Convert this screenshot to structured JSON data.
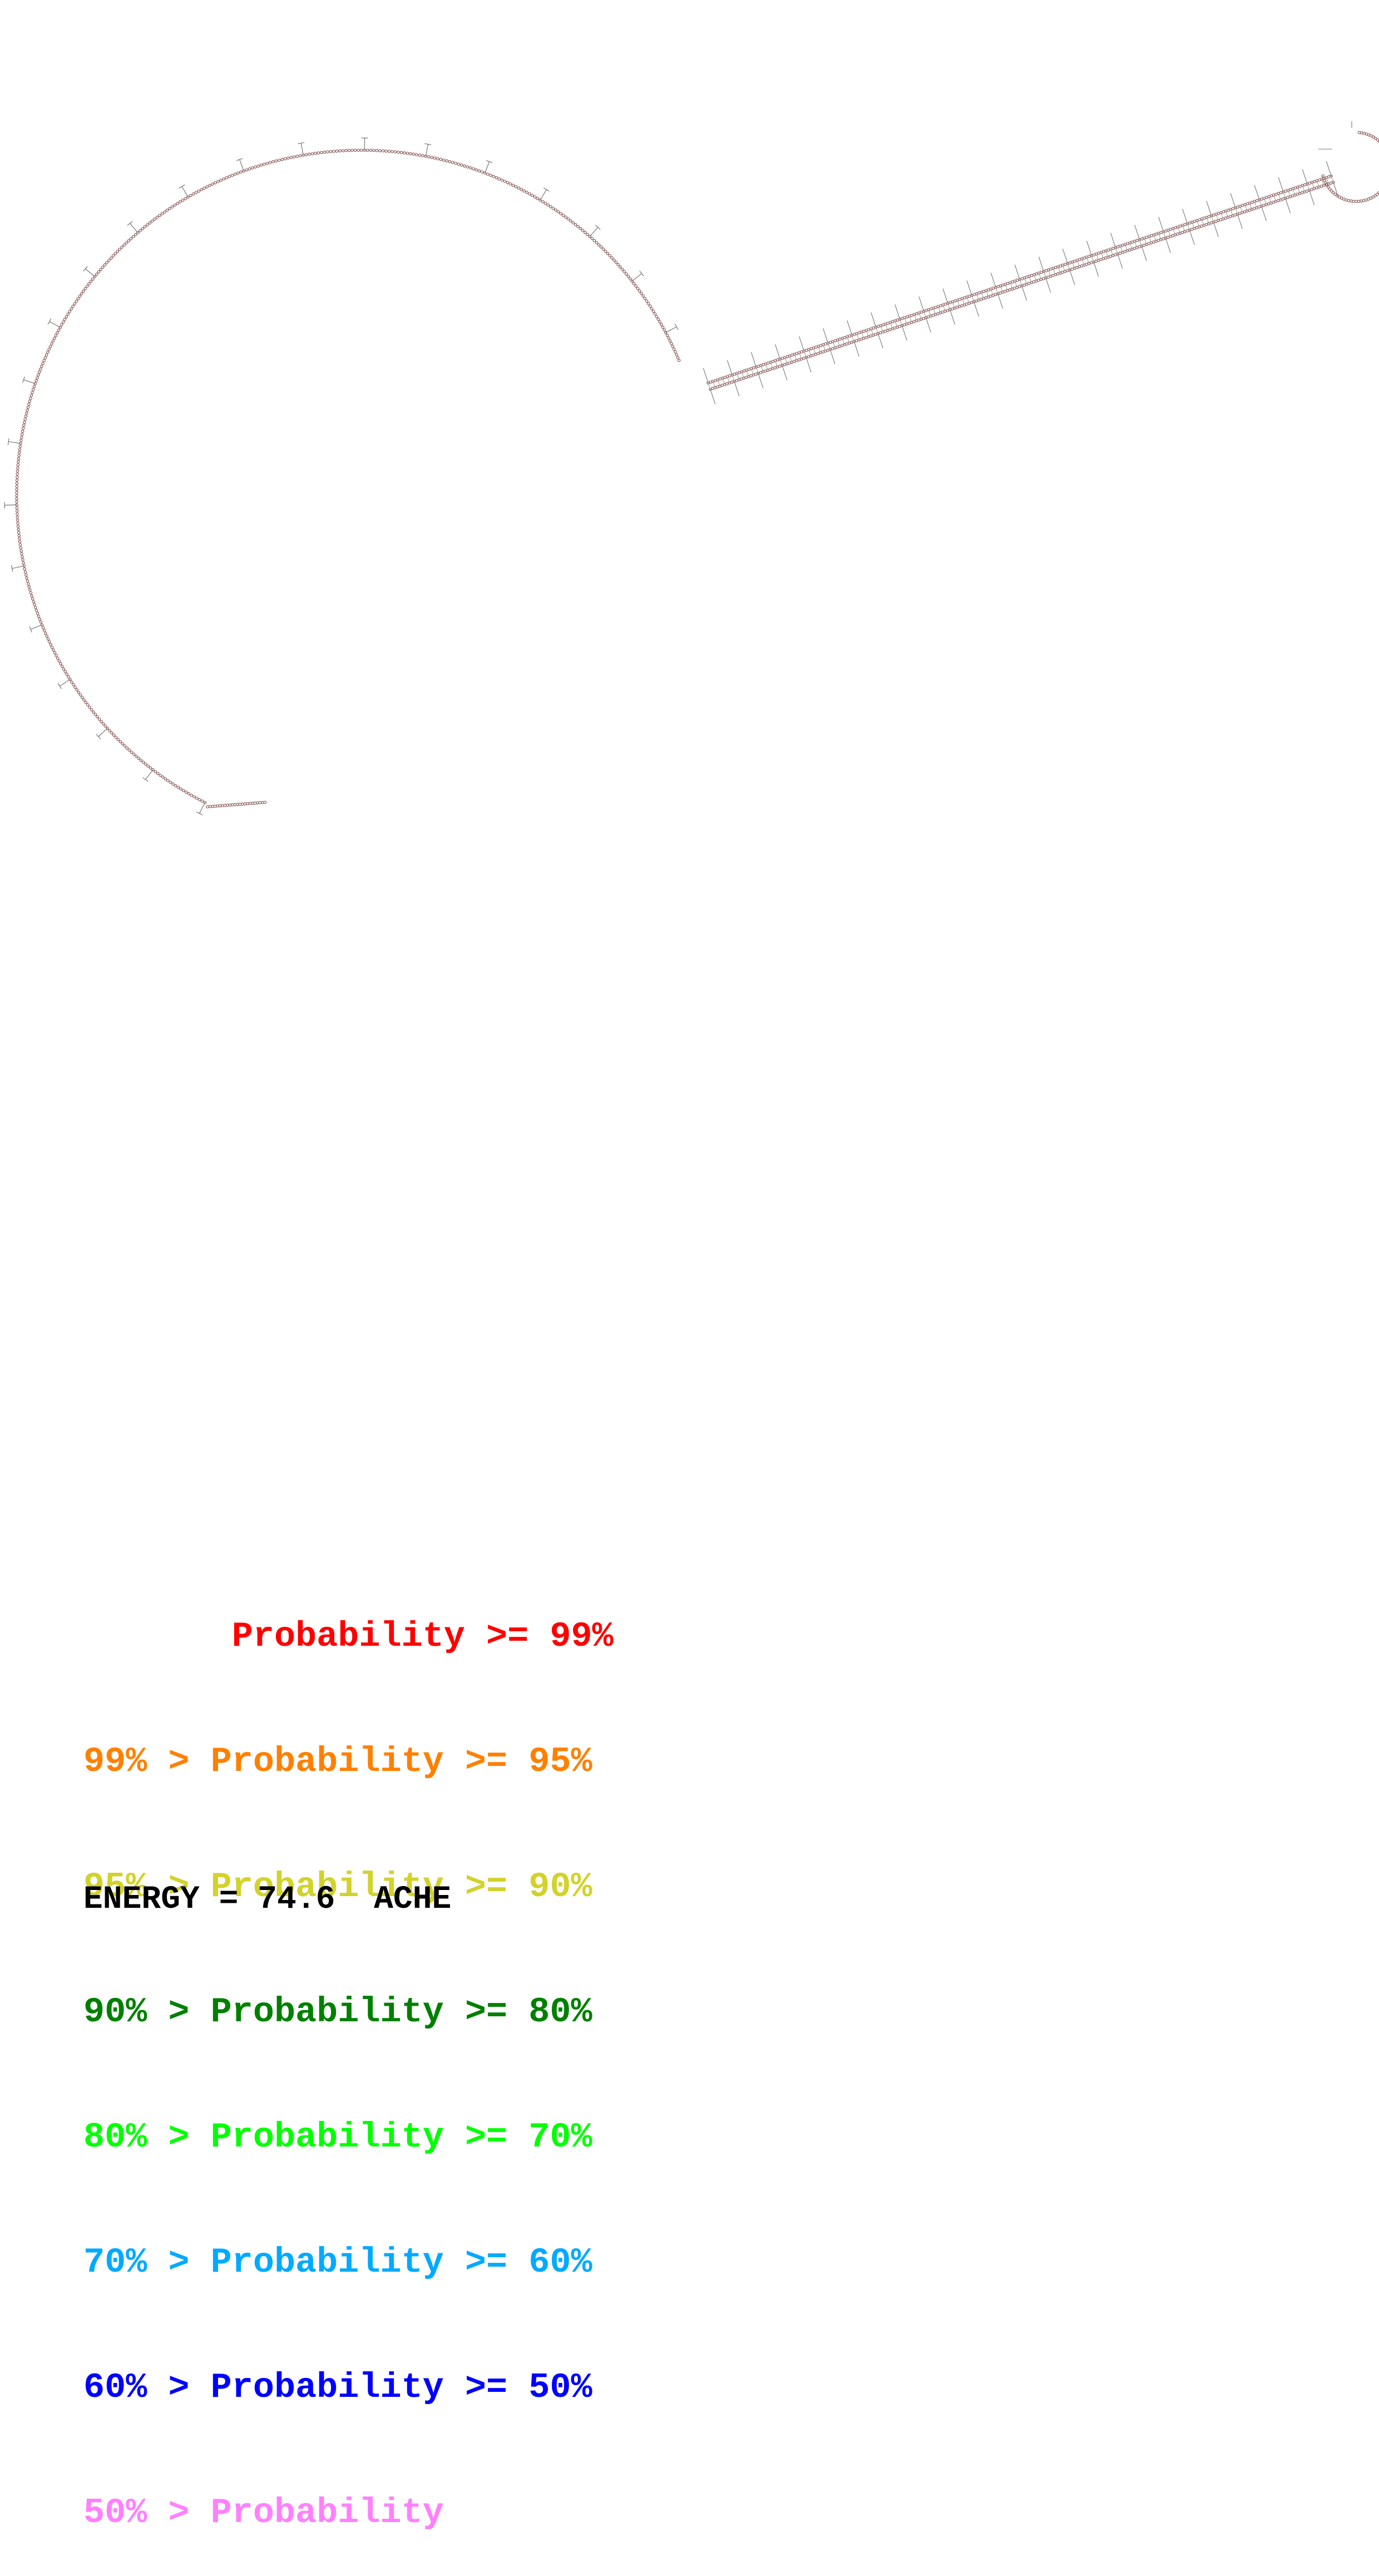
{
  "legend": [
    {
      "text": "       Probability >= 99%",
      "color": "#ff0000"
    },
    {
      "text": "99% > Probability >= 95%",
      "color": "#ff8000"
    },
    {
      "text": "95% > Probability >= 90%",
      "color": "#d2d22b"
    },
    {
      "text": "90% > Probability >= 80%",
      "color": "#008000"
    },
    {
      "text": "80% > Probability >= 70%",
      "color": "#00ff00"
    },
    {
      "text": "70% > Probability >= 60%",
      "color": "#00aaff"
    },
    {
      "text": "60% > Probability >= 50%",
      "color": "#0000ff"
    },
    {
      "text": "50% > Probability",
      "color": "#ff80ff"
    }
  ],
  "footer": {
    "energy_text": "ENERGY = 74.6  ACHE"
  },
  "structure": {
    "base_color": "#8a5a5a",
    "pair_color": "#9a9a9a"
  }
}
